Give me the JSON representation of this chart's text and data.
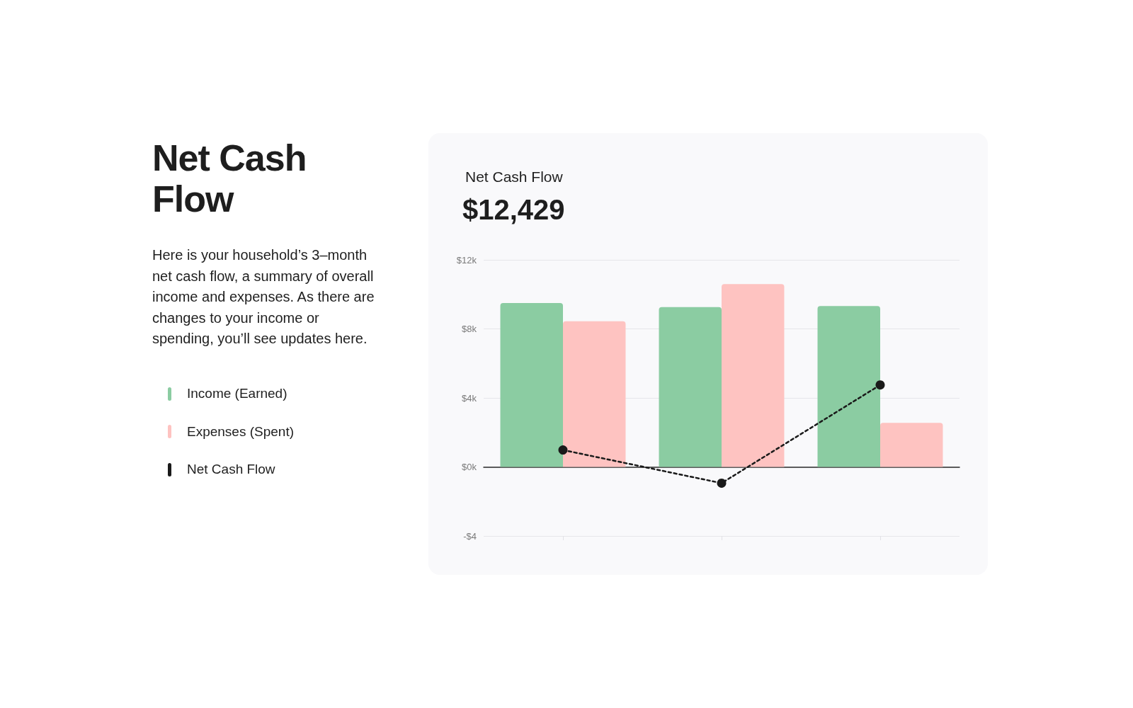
{
  "chart_data": {
    "type": "bar",
    "title": "Net Cash Flow",
    "subtitle": "Here is your household’s 3–month net cash flow, a summary of overall income and expenses. As there are changes to your income or spending, you’ll see updates here.",
    "annotations": [
      "Net Cash Flow",
      "$12,429"
    ],
    "categories": [
      null,
      null,
      null
    ],
    "series": [
      {
        "name": "Income (Earned)",
        "color": "#8bcca2",
        "values": [
          9.5,
          9.26,
          9.32
        ]
      },
      {
        "name": "Expenses (Spent)",
        "color": "#fec3c1",
        "values": [
          8.44,
          10.6,
          2.55
        ]
      },
      {
        "name": "Net Cash Flow",
        "type": "line",
        "color": "#1a1a1a",
        "values": [
          0.98,
          -0.94,
          4.75
        ],
        "marker": "circle",
        "line_style": "dashed"
      }
    ],
    "ylim": [
      -4,
      12
    ],
    "yticks": [
      {
        "value": -4,
        "label": "-$4"
      },
      {
        "value": 0,
        "label": "$0k"
      },
      {
        "value": 4,
        "label": "$4k"
      },
      {
        "value": 8,
        "label": "$8k"
      },
      {
        "value": 12,
        "label": "$12k"
      }
    ],
    "grid": "y",
    "legend": "left"
  }
}
